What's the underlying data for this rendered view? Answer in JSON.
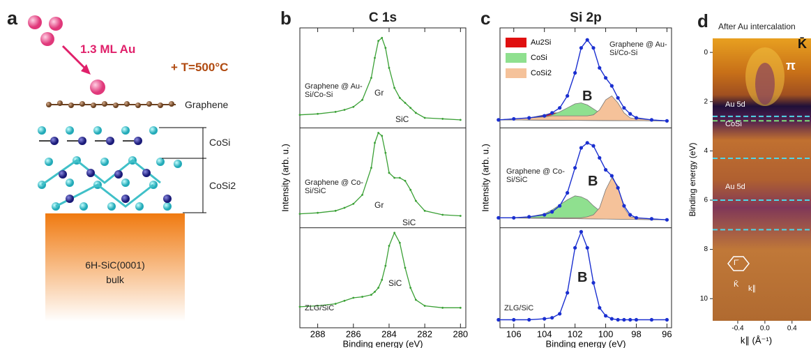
{
  "panel_a": {
    "label": "a",
    "deposit": "1.3 ML Au",
    "anneal": "+ T=500°C",
    "layers": [
      "Graphene",
      "CoSi",
      "CoSi2"
    ],
    "substrate": [
      "6H-SiC(0001)",
      "bulk"
    ]
  },
  "chart_data": [
    {
      "type": "line",
      "panel_label": "b",
      "title": "C 1s",
      "x_label": "Binding energy (eV)",
      "y_label": "Intensity (arb. u.)",
      "xlim": [
        289,
        279.7
      ],
      "xticks": [
        288,
        286,
        284,
        282,
        280
      ],
      "ylim": [
        0,
        3
      ],
      "x": [
        289,
        288,
        287,
        286.5,
        286,
        285.5,
        285,
        284.8,
        284.6,
        284.4,
        284.2,
        284,
        283.7,
        283.4,
        283.1,
        282.8,
        282.5,
        282,
        281,
        280
      ],
      "series": [
        {
          "name": "Graphene @ Au-Si/Co-Si",
          "color": "#3aa035",
          "values": [
            2.13,
            2.14,
            2.16,
            2.18,
            2.21,
            2.28,
            2.5,
            2.7,
            2.87,
            2.9,
            2.8,
            2.6,
            2.4,
            2.3,
            2.25,
            2.2,
            2.15,
            2.1,
            2.09,
            2.08
          ]
        },
        {
          "name": "Graphene @ Co-Si/SiC",
          "color": "#3aa035",
          "values": [
            1.14,
            1.15,
            1.17,
            1.2,
            1.24,
            1.33,
            1.6,
            1.85,
            1.95,
            1.92,
            1.75,
            1.55,
            1.5,
            1.5,
            1.47,
            1.38,
            1.27,
            1.17,
            1.13,
            1.12
          ]
        },
        {
          "name": "ZLG/SiC",
          "color": "#3aa035",
          "values": [
            0.21,
            0.22,
            0.24,
            0.27,
            0.3,
            0.31,
            0.33,
            0.36,
            0.4,
            0.48,
            0.62,
            0.82,
            0.95,
            0.85,
            0.6,
            0.4,
            0.28,
            0.22,
            0.2,
            0.2
          ]
        }
      ],
      "annotations": [
        "Gr",
        "SiC",
        "Gr",
        "SiC",
        "SiC"
      ]
    },
    {
      "type": "line",
      "panel_label": "c",
      "title": "Si 2p",
      "x_label": "Binding energy (eV)",
      "y_label": "Intensity (arb. u.)",
      "xlim": [
        106.9,
        95.7
      ],
      "xticks": [
        106,
        104,
        102,
        100,
        98,
        96
      ],
      "ylim": [
        0,
        3
      ],
      "x": [
        107,
        106,
        105,
        104,
        103.5,
        103,
        102.5,
        102,
        101.6,
        101.2,
        100.8,
        100.4,
        100,
        99.6,
        99.2,
        98.8,
        98.4,
        98,
        97,
        96
      ],
      "series": [
        {
          "name": "Au2Si",
          "color": "#e01010",
          "fill": true,
          "values": [
            2.08,
            2.09,
            2.1,
            2.13,
            2.15,
            2.15,
            2.13,
            2.11,
            2.1,
            2.09,
            2.09,
            2.09,
            2.09,
            2.08,
            2.08,
            2.08,
            2.08,
            2.08,
            2.08,
            2.07
          ]
        },
        {
          "name": "CoSi",
          "color": "#8fe08f",
          "fill": true,
          "values": [
            2.08,
            2.09,
            2.1,
            2.11,
            2.13,
            2.16,
            2.2,
            2.24,
            2.25,
            2.23,
            2.19,
            2.15,
            2.12,
            2.1,
            2.09,
            2.08,
            2.08,
            2.08,
            2.08,
            2.07
          ]
        },
        {
          "name": "CoSi2",
          "color": "#f5c29a",
          "fill": true,
          "values": [
            2.08,
            2.09,
            2.1,
            2.11,
            2.12,
            2.12,
            2.12,
            2.12,
            2.12,
            2.12,
            2.13,
            2.18,
            2.28,
            2.32,
            2.25,
            2.15,
            2.1,
            2.09,
            2.08,
            2.07
          ]
        },
        {
          "name": "CoSi",
          "color": "#8fe08f",
          "fill": true,
          "values": [
            1.1,
            1.1,
            1.11,
            1.14,
            1.18,
            1.23,
            1.28,
            1.32,
            1.31,
            1.28,
            1.22,
            1.17,
            1.13,
            1.11,
            1.1,
            1.09,
            1.09,
            1.09,
            1.09,
            1.08
          ]
        },
        {
          "name": "CoSi2",
          "color": "#f5c29a",
          "fill": true,
          "values": [
            1.1,
            1.1,
            1.1,
            1.1,
            1.1,
            1.1,
            1.1,
            1.1,
            1.1,
            1.11,
            1.13,
            1.2,
            1.38,
            1.5,
            1.42,
            1.2,
            1.11,
            1.1,
            1.09,
            1.08
          ]
        },
        {
          "name": "Graphene @ Au-Si/Co-Si",
          "color": "#1a2fd0",
          "values": [
            2.08,
            2.09,
            2.1,
            2.12,
            2.15,
            2.2,
            2.32,
            2.55,
            2.8,
            2.88,
            2.8,
            2.6,
            2.5,
            2.42,
            2.3,
            2.2,
            2.14,
            2.1,
            2.08,
            2.07
          ]
        },
        {
          "name": "Graphene @ Co-Si/SiC",
          "color": "#1a2fd0",
          "values": [
            1.1,
            1.1,
            1.11,
            1.13,
            1.16,
            1.22,
            1.35,
            1.6,
            1.8,
            1.85,
            1.82,
            1.7,
            1.58,
            1.52,
            1.4,
            1.22,
            1.13,
            1.1,
            1.09,
            1.08
          ]
        },
        {
          "name": "ZLG/SiC",
          "color": "#1a2fd0",
          "values": [
            0.08,
            0.08,
            0.08,
            0.09,
            0.1,
            0.14,
            0.35,
            0.8,
            0.96,
            0.8,
            0.45,
            0.2,
            0.12,
            0.09,
            0.08,
            0.08,
            0.08,
            0.08,
            0.08,
            0.08
          ]
        }
      ],
      "annotations": [
        "B",
        "B",
        "B"
      ]
    },
    {
      "type": "image",
      "panel_label": "d",
      "title": "After Au intercalation",
      "x_label": "k∥ (Å⁻¹)",
      "y_label": "Binding energy (eV)",
      "xlim": [
        -0.77,
        0.68
      ],
      "xticks": [
        -0.4,
        {
          "value": 0,
          "label": "0.0"
        },
        0.4
      ],
      "ylim": [
        10.9,
        -0.57
      ],
      "yticks": [
        0,
        2,
        4,
        6,
        8,
        10
      ],
      "lines": [
        {
          "value": 2.6,
          "color": "#4fd6e8"
        },
        {
          "value": 2.78,
          "color": "#7fe07a"
        },
        {
          "value": 4.3,
          "color": "#4fd6e8"
        },
        {
          "value": 6.0,
          "color": "#4fd6e8"
        },
        {
          "value": 7.2,
          "color": "#4fd6e8"
        }
      ],
      "annotations": [
        "K̄",
        "π",
        "Au 5d",
        "CoSi",
        "Au 5d",
        "Γ̄",
        "K̄",
        "k∥"
      ]
    }
  ]
}
